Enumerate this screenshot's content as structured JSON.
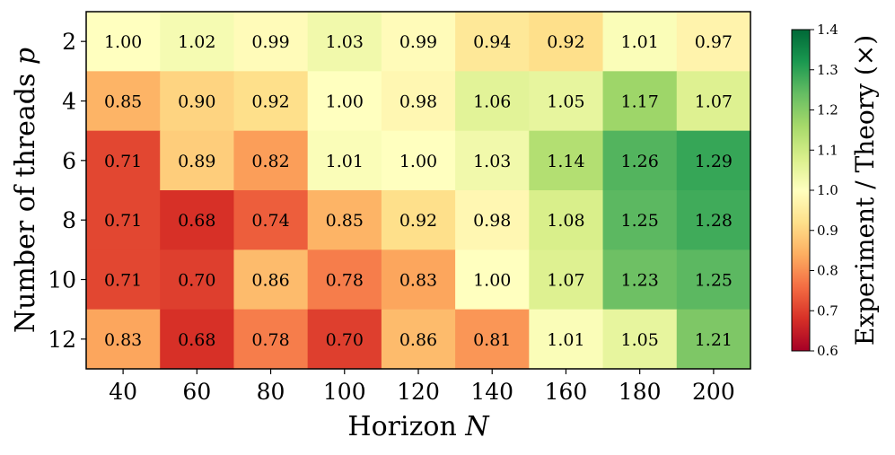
{
  "chart_data": {
    "type": "heatmap",
    "xlabel_text": "Horizon ",
    "xlabel_var": "N",
    "ylabel_text": "Number of threads ",
    "ylabel_var": "p",
    "x_categories": [
      "40",
      "60",
      "80",
      "100",
      "120",
      "140",
      "160",
      "180",
      "200"
    ],
    "y_categories": [
      "2",
      "4",
      "6",
      "8",
      "10",
      "12"
    ],
    "values": [
      [
        1.0,
        1.02,
        0.99,
        1.03,
        0.99,
        0.94,
        0.92,
        1.01,
        0.97
      ],
      [
        0.85,
        0.9,
        0.92,
        1.0,
        0.98,
        1.06,
        1.05,
        1.17,
        1.07
      ],
      [
        0.71,
        0.89,
        0.82,
        1.01,
        1.0,
        1.03,
        1.14,
        1.26,
        1.29
      ],
      [
        0.71,
        0.68,
        0.74,
        0.85,
        0.92,
        0.98,
        1.08,
        1.25,
        1.28
      ],
      [
        0.71,
        0.7,
        0.86,
        0.78,
        0.83,
        1.0,
        1.07,
        1.23,
        1.25
      ],
      [
        0.83,
        0.68,
        0.78,
        0.7,
        0.86,
        0.81,
        1.01,
        1.05,
        1.21
      ]
    ],
    "value_labels": [
      [
        "1.00",
        "1.02",
        "0.99",
        "1.03",
        "0.99",
        "0.94",
        "0.92",
        "1.01",
        "0.97"
      ],
      [
        "0.85",
        "0.90",
        "0.92",
        "1.00",
        "0.98",
        "1.06",
        "1.05",
        "1.17",
        "1.07"
      ],
      [
        "0.71",
        "0.89",
        "0.82",
        "1.01",
        "1.00",
        "1.03",
        "1.14",
        "1.26",
        "1.29"
      ],
      [
        "0.71",
        "0.68",
        "0.74",
        "0.85",
        "0.92",
        "0.98",
        "1.08",
        "1.25",
        "1.28"
      ],
      [
        "0.71",
        "0.70",
        "0.86",
        "0.78",
        "0.83",
        "1.00",
        "1.07",
        "1.23",
        "1.25"
      ],
      [
        "0.83",
        "0.68",
        "0.78",
        "0.70",
        "0.86",
        "0.81",
        "1.01",
        "1.05",
        "1.21"
      ]
    ],
    "colorbar": {
      "label": "Experiment / Theory (×)",
      "range": [
        0.6,
        1.4
      ],
      "ticks": [
        "0.6",
        "0.7",
        "0.8",
        "0.9",
        "1.0",
        "1.1",
        "1.2",
        "1.3",
        "1.4"
      ],
      "colormap": "RdYlGn",
      "colormap_stops": [
        "#a50026",
        "#d73027",
        "#f46d43",
        "#fdae61",
        "#fee08b",
        "#ffffbf",
        "#d9ef8b",
        "#a6d96a",
        "#66bd63",
        "#1a9850",
        "#006837"
      ]
    },
    "grid": false,
    "legend": "colorbar-right"
  }
}
